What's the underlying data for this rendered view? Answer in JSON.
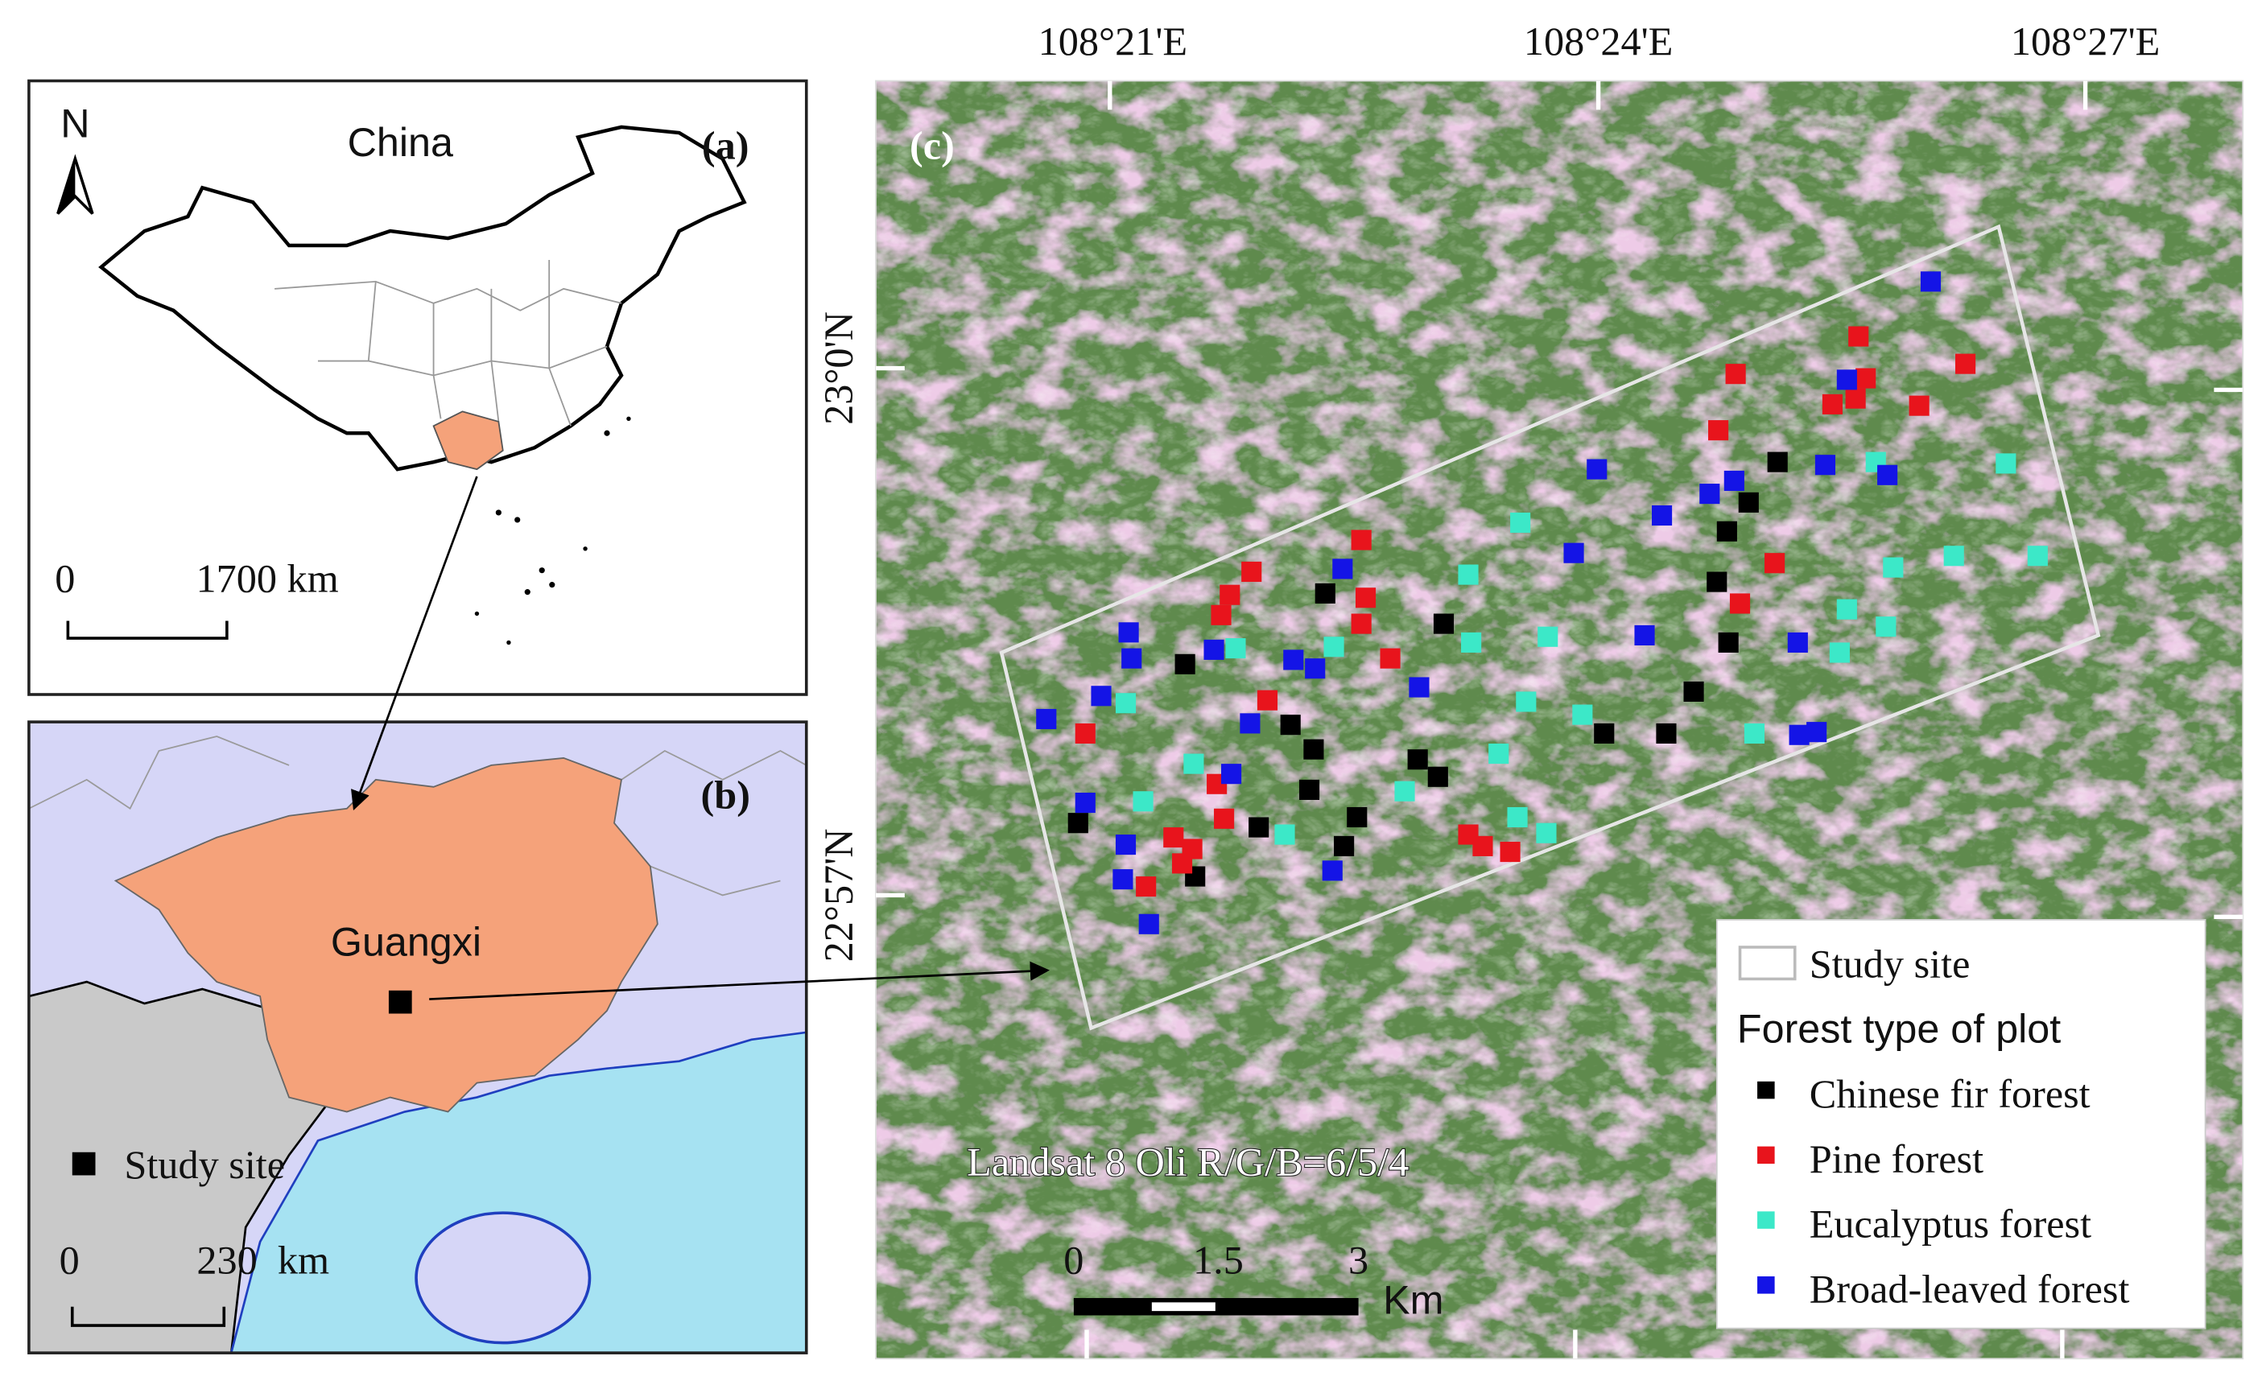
{
  "panels": {
    "a": {
      "label": "(a)",
      "country": "China",
      "north": "N",
      "scale": [
        "0",
        "1700 km"
      ]
    },
    "b": {
      "label": "(b)",
      "province": "Guangxi",
      "legend": "Study site",
      "scale": [
        "0",
        "230  km"
      ]
    },
    "c": {
      "label": "(c)",
      "lon_labels": [
        "108°21'E",
        "108°24'E",
        "108°27'E"
      ],
      "lat_labels": [
        "23°0'N",
        "22°57'N"
      ],
      "imagery": "Landsat 8 Oli R/G/B=6/5/4",
      "scale": [
        "0",
        "1.5",
        "3"
      ],
      "scale_unit": "Km",
      "legend": {
        "boundary": "Study site",
        "title": "Forest type of plot",
        "items": [
          {
            "name": "Chinese fir forest",
            "color": "#000000"
          },
          {
            "name": "Pine forest",
            "color": "#e8141c"
          },
          {
            "name": "Eucalyptus forest",
            "color": "#3ce8c8"
          },
          {
            "name": "Broad-leaved forest",
            "color": "#1414e6"
          }
        ]
      }
    }
  }
}
